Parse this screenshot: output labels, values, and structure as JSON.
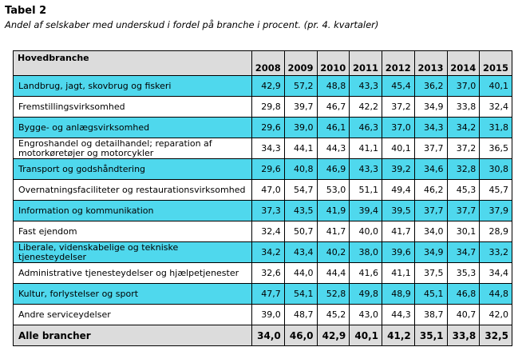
{
  "title": "Tabel 2",
  "subtitle": "Andel af selskaber med underskud i fordel på branche i procent. (pr. 4. kvartaler)",
  "header": {
    "label": "Hovedbranche",
    "years": [
      "2008",
      "2009",
      "2010",
      "2011",
      "2012",
      "2013",
      "2014",
      "2015"
    ]
  },
  "rows": [
    {
      "label": "Landbrug, jagt, skovbrug og fiskeri",
      "values": [
        "42,9",
        "57,2",
        "48,8",
        "43,3",
        "45,4",
        "36,2",
        "37,0",
        "40,1"
      ]
    },
    {
      "label": "Fremstillingsvirksomhed",
      "values": [
        "29,8",
        "39,7",
        "46,7",
        "42,2",
        "37,2",
        "34,9",
        "33,8",
        "32,4"
      ]
    },
    {
      "label": "Bygge- og anlægsvirksomhed",
      "values": [
        "29,6",
        "39,0",
        "46,1",
        "46,3",
        "37,0",
        "34,3",
        "34,2",
        "31,8"
      ]
    },
    {
      "label": "Engroshandel og detailhandel; reparation af motorkøretøjer og motorcykler",
      "values": [
        "34,3",
        "44,1",
        "44,3",
        "41,1",
        "40,1",
        "37,7",
        "37,2",
        "36,5"
      ]
    },
    {
      "label": "Transport og godshåndtering",
      "values": [
        "29,6",
        "40,8",
        "46,9",
        "43,3",
        "39,2",
        "34,6",
        "32,8",
        "30,8"
      ]
    },
    {
      "label": "Overnatningsfaciliteter og restaurationsvirksomhed",
      "values": [
        "47,0",
        "54,7",
        "53,0",
        "51,1",
        "49,4",
        "46,2",
        "45,3",
        "45,7"
      ]
    },
    {
      "label": "Information og kommunikation",
      "values": [
        "37,3",
        "43,5",
        "41,9",
        "39,4",
        "39,5",
        "37,7",
        "37,7",
        "37,9"
      ]
    },
    {
      "label": "Fast ejendom",
      "values": [
        "32,4",
        "50,7",
        "41,7",
        "40,0",
        "41,7",
        "34,0",
        "30,1",
        "28,9"
      ]
    },
    {
      "label": "Liberale, videnskabelige og tekniske tjenesteydelser",
      "values": [
        "34,2",
        "43,4",
        "40,2",
        "38,0",
        "39,6",
        "34,9",
        "34,7",
        "33,2"
      ]
    },
    {
      "label": "Administrative tjenesteydelser og hjælpetjenester",
      "values": [
        "32,6",
        "44,0",
        "44,4",
        "41,6",
        "41,1",
        "37,5",
        "35,3",
        "34,4"
      ]
    },
    {
      "label": "Kultur, forlystelser og sport",
      "values": [
        "47,7",
        "54,1",
        "52,8",
        "49,8",
        "48,9",
        "45,1",
        "46,8",
        "44,8"
      ]
    },
    {
      "label": "Andre serviceydelser",
      "values": [
        "39,0",
        "48,7",
        "45,2",
        "43,0",
        "44,3",
        "38,7",
        "40,7",
        "42,0"
      ]
    }
  ],
  "total": {
    "label": "Alle brancher",
    "values": [
      "34,0",
      "46,0",
      "42,9",
      "40,1",
      "41,2",
      "35,1",
      "33,8",
      "32,5"
    ]
  },
  "colors": {
    "highlight_row": "#4fd8ed",
    "header_bg": "#dcdcdc"
  }
}
